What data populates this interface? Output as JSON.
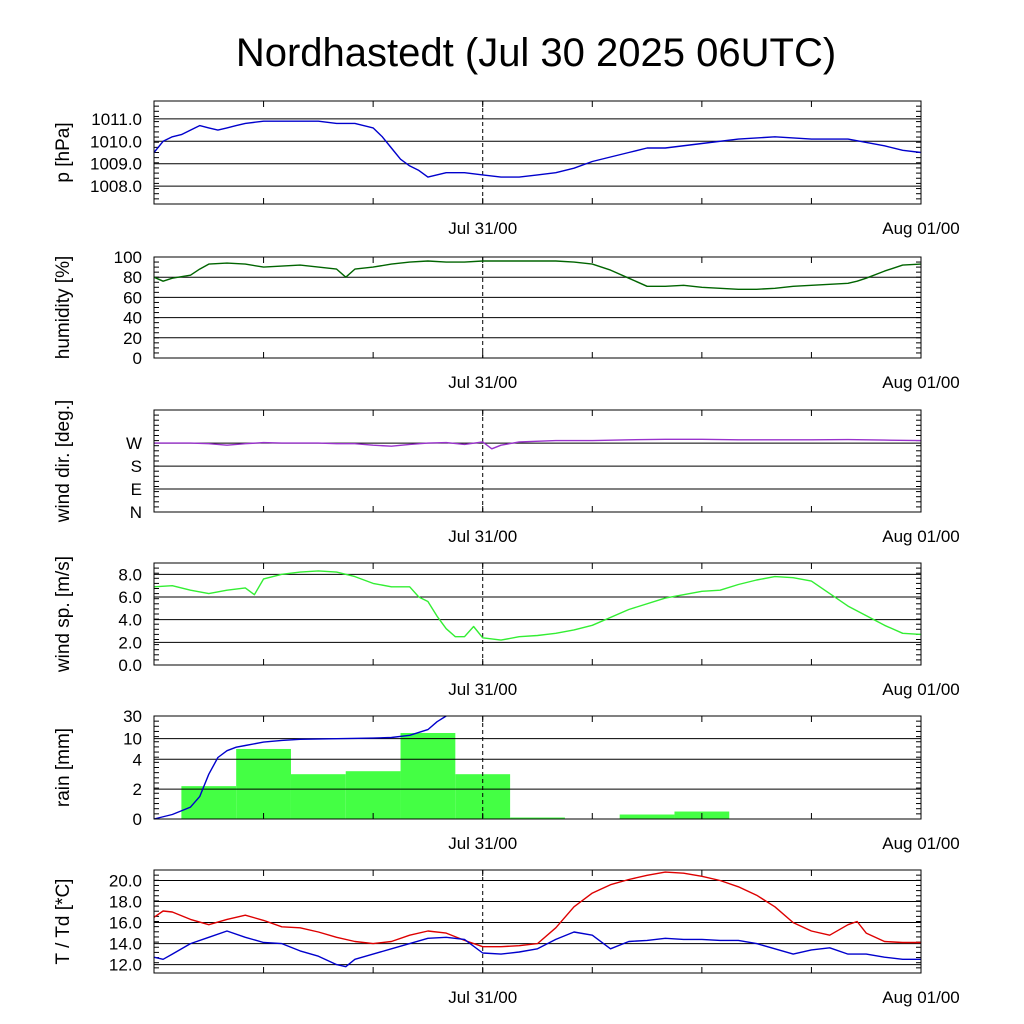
{
  "title": "Nordhastedt (Jul 30 2025 06UTC)",
  "chart_data": [
    {
      "id": "pressure",
      "type": "line",
      "ylabel": "p [hPa]",
      "yscale": "linear",
      "ylim": [
        1007.2,
        1011.8
      ],
      "yticks": [
        1008.0,
        1009.0,
        1010.0,
        1011.0
      ],
      "ytick_labels": [
        "1008.0",
        "1009.0",
        "1010.0",
        "1011.0"
      ],
      "xticks": [
        "Jul 31/00",
        "Aug 01/00"
      ],
      "xlim_hours": [
        0,
        42
      ],
      "series": [
        {
          "color": "#0000cc",
          "x": [
            0,
            0.5,
            1,
            1.5,
            2,
            2.5,
            3,
            3.5,
            4,
            4.5,
            5,
            6,
            7,
            8,
            9,
            10,
            11,
            12,
            12.5,
            13,
            13.5,
            14,
            14.5,
            15,
            16,
            17,
            18,
            19,
            20,
            21,
            22,
            23,
            24,
            25,
            26,
            27,
            28,
            30,
            32,
            34,
            36,
            38,
            40,
            41,
            42
          ],
          "y": [
            1009.5,
            1010.0,
            1010.2,
            1010.3,
            1010.5,
            1010.7,
            1010.6,
            1010.5,
            1010.6,
            1010.7,
            1010.8,
            1010.9,
            1010.9,
            1010.9,
            1010.9,
            1010.8,
            1010.8,
            1010.6,
            1010.2,
            1009.7,
            1009.2,
            1008.9,
            1008.7,
            1008.4,
            1008.6,
            1008.6,
            1008.5,
            1008.4,
            1008.4,
            1008.5,
            1008.6,
            1008.8,
            1009.1,
            1009.3,
            1009.5,
            1009.7,
            1009.7,
            1009.9,
            1010.1,
            1010.2,
            1010.1,
            1010.1,
            1009.8,
            1009.6,
            1009.5
          ]
        }
      ]
    },
    {
      "id": "humidity",
      "type": "line",
      "ylabel": "humidity [%]",
      "yscale": "linear",
      "ylim": [
        0,
        100
      ],
      "yticks": [
        0,
        20,
        40,
        60,
        80,
        100
      ],
      "ytick_labels": [
        "0",
        "20",
        "40",
        "60",
        "80",
        "100"
      ],
      "xticks": [
        "Jul 31/00",
        "Aug 01/00"
      ],
      "xlim_hours": [
        0,
        42
      ],
      "series": [
        {
          "color": "#006400",
          "x": [
            0,
            0.5,
            1,
            2,
            2.5,
            3,
            4,
            5,
            6,
            7,
            8,
            9,
            10,
            10.5,
            11,
            12,
            13,
            14,
            15,
            16,
            17,
            18,
            19,
            20,
            21,
            22,
            23,
            24,
            25,
            26,
            27,
            28,
            29,
            30,
            31,
            32,
            33,
            34,
            35,
            36,
            37,
            38,
            38.5,
            39,
            40,
            41,
            42
          ],
          "y": [
            80,
            76,
            79,
            82,
            88,
            93,
            94,
            93,
            90,
            91,
            92,
            90,
            88,
            80,
            88,
            90,
            93,
            95,
            96,
            95,
            95,
            96,
            96,
            96,
            96,
            96,
            95,
            93,
            87,
            79,
            71,
            71,
            72,
            70,
            69,
            68,
            68,
            69,
            71,
            72,
            73,
            74,
            76,
            79,
            86,
            92,
            93
          ]
        }
      ]
    },
    {
      "id": "wind-direction",
      "type": "line",
      "ylabel": "wind dir. [deg.]",
      "yscale": "linear",
      "ylim": [
        0,
        400
      ],
      "yticks": [
        0,
        90,
        180,
        270
      ],
      "ytick_labels": [
        "N",
        "E",
        "S",
        "W"
      ],
      "xticks": [
        "Jul 31/00",
        "Aug 01/00"
      ],
      "xlim_hours": [
        0,
        42
      ],
      "series": [
        {
          "color": "#9932cc",
          "x": [
            0,
            2,
            3,
            4,
            5,
            6,
            7,
            8,
            9,
            10,
            11,
            12,
            13,
            14,
            15,
            16,
            17,
            18,
            18.5,
            19,
            20,
            22,
            24,
            26,
            28,
            30,
            32,
            34,
            36,
            38,
            40,
            42
          ],
          "y": [
            270,
            270,
            268,
            262,
            268,
            272,
            270,
            270,
            270,
            268,
            268,
            262,
            258,
            265,
            270,
            272,
            265,
            275,
            248,
            262,
            275,
            280,
            280,
            283,
            285,
            285,
            283,
            283,
            283,
            284,
            282,
            280
          ]
        }
      ]
    },
    {
      "id": "wind-speed",
      "type": "line",
      "ylabel": "wind sp. [m/s]",
      "yscale": "linear",
      "ylim": [
        0,
        9
      ],
      "yticks": [
        0,
        2,
        4,
        6,
        8
      ],
      "ytick_labels": [
        "0.0",
        "2.0",
        "4.0",
        "6.0",
        "8.0"
      ],
      "xticks": [
        "Jul 31/00",
        "Aug 01/00"
      ],
      "xlim_hours": [
        0,
        42
      ],
      "series": [
        {
          "color": "#33ee33",
          "x": [
            0,
            1,
            2,
            3,
            4,
            5,
            5.5,
            6,
            7,
            8,
            9,
            10,
            11,
            12,
            13,
            14,
            14.5,
            15,
            15.5,
            16,
            16.5,
            17,
            17.5,
            18,
            19,
            20,
            21,
            22,
            23,
            24,
            26,
            28,
            30,
            31,
            32,
            33,
            34,
            35,
            36,
            38,
            40,
            41,
            42
          ],
          "y": [
            6.9,
            7.0,
            6.6,
            6.3,
            6.6,
            6.8,
            6.2,
            7.6,
            8.0,
            8.2,
            8.3,
            8.2,
            7.8,
            7.2,
            6.9,
            6.9,
            6.0,
            5.6,
            4.3,
            3.2,
            2.5,
            2.5,
            3.4,
            2.4,
            2.2,
            2.5,
            2.6,
            2.8,
            3.1,
            3.5,
            4.9,
            5.9,
            6.5,
            6.6,
            7.1,
            7.5,
            7.8,
            7.7,
            7.4,
            5.2,
            3.5,
            2.8,
            2.7
          ]
        }
      ]
    },
    {
      "id": "rain",
      "type": "bar",
      "ylabel": "rain [mm]",
      "yscale": "custom",
      "yticks": [
        0,
        2,
        4,
        10,
        30
      ],
      "ytick_labels": [
        "0",
        "2",
        "4",
        "10",
        "30"
      ],
      "xticks": [
        "Jul 31/00",
        "Aug 01/00"
      ],
      "xlim_hours": [
        0,
        42
      ],
      "bar_color": "#44ff44",
      "bars": [
        {
          "start_hour": 1.5,
          "end_hour": 4.5,
          "value": 2.2
        },
        {
          "start_hour": 4.5,
          "end_hour": 7.5,
          "value": 7.0
        },
        {
          "start_hour": 7.5,
          "end_hour": 10.5,
          "value": 3.0
        },
        {
          "start_hour": 10.5,
          "end_hour": 13.5,
          "value": 3.2
        },
        {
          "start_hour": 13.5,
          "end_hour": 16.5,
          "value": 15.0
        },
        {
          "start_hour": 16.5,
          "end_hour": 19.5,
          "value": 3.0
        },
        {
          "start_hour": 19.5,
          "end_hour": 22.5,
          "value": 0.1
        },
        {
          "start_hour": 25.5,
          "end_hour": 28.5,
          "value": 0.3
        },
        {
          "start_hour": 28.5,
          "end_hour": 31.5,
          "value": 0.5
        }
      ],
      "series": [
        {
          "color": "#0000cc",
          "x": [
            0,
            1,
            2,
            2.5,
            3,
            3.5,
            4,
            4.5,
            5,
            6,
            7,
            8,
            10,
            12,
            13,
            14,
            15,
            15.5,
            16
          ],
          "y": [
            0,
            0.3,
            0.8,
            1.5,
            3.0,
            4.5,
            6.5,
            7.5,
            8.0,
            9.0,
            9.5,
            9.8,
            10.0,
            10.5,
            11.0,
            13.0,
            18.0,
            25.0,
            30.0
          ]
        }
      ]
    },
    {
      "id": "temperature",
      "type": "line",
      "ylabel": "T / Td [*C]",
      "yscale": "linear",
      "ylim": [
        11.2,
        21.0
      ],
      "yticks": [
        12.0,
        14.0,
        16.0,
        18.0,
        20.0
      ],
      "ytick_labels": [
        "12.0",
        "14.0",
        "16.0",
        "18.0",
        "20.0"
      ],
      "xticks": [
        "Jul 31/00",
        "Aug 01/00"
      ],
      "xlim_hours": [
        0,
        42
      ],
      "series": [
        {
          "color": "#dd0000",
          "x": [
            0,
            0.5,
            1,
            2,
            3,
            4,
            5,
            6,
            7,
            8,
            9,
            10,
            11,
            12,
            13,
            14,
            15,
            16,
            17,
            18,
            19,
            20,
            21,
            22,
            23,
            24,
            25,
            26,
            27,
            28,
            29,
            30,
            31,
            32,
            33,
            34,
            35,
            36,
            37,
            38,
            38.5,
            39,
            40,
            41,
            42
          ],
          "y": [
            16.5,
            17.1,
            17.0,
            16.3,
            15.8,
            16.3,
            16.7,
            16.2,
            15.6,
            15.5,
            15.1,
            14.6,
            14.2,
            14.0,
            14.2,
            14.8,
            15.2,
            15.0,
            14.3,
            13.7,
            13.7,
            13.8,
            14.0,
            15.5,
            17.5,
            18.8,
            19.6,
            20.1,
            20.5,
            20.8,
            20.7,
            20.4,
            20.0,
            19.4,
            18.6,
            17.5,
            16.0,
            15.2,
            14.8,
            15.8,
            16.1,
            15.0,
            14.2,
            14.1,
            14.1
          ]
        },
        {
          "color": "#0000cc",
          "x": [
            0,
            0.5,
            1,
            2,
            3,
            4,
            5,
            6,
            7,
            8,
            9,
            10,
            10.5,
            11,
            12,
            13,
            14,
            15,
            16,
            17,
            18,
            19,
            20,
            21,
            22,
            23,
            24,
            25,
            26,
            27,
            28,
            29,
            30,
            31,
            32,
            33,
            34,
            35,
            36,
            37,
            38,
            39,
            40,
            41,
            42
          ],
          "y": [
            12.7,
            12.5,
            13.0,
            14.0,
            14.6,
            15.2,
            14.6,
            14.1,
            14.0,
            13.3,
            12.8,
            12.0,
            11.8,
            12.5,
            13.0,
            13.5,
            14.0,
            14.5,
            14.6,
            14.4,
            13.1,
            13.0,
            13.2,
            13.5,
            14.4,
            15.1,
            14.8,
            13.5,
            14.2,
            14.3,
            14.5,
            14.4,
            14.4,
            14.3,
            14.3,
            14.0,
            13.5,
            13.0,
            13.4,
            13.6,
            13.0,
            13.0,
            12.7,
            12.5,
            12.5
          ]
        }
      ]
    }
  ]
}
